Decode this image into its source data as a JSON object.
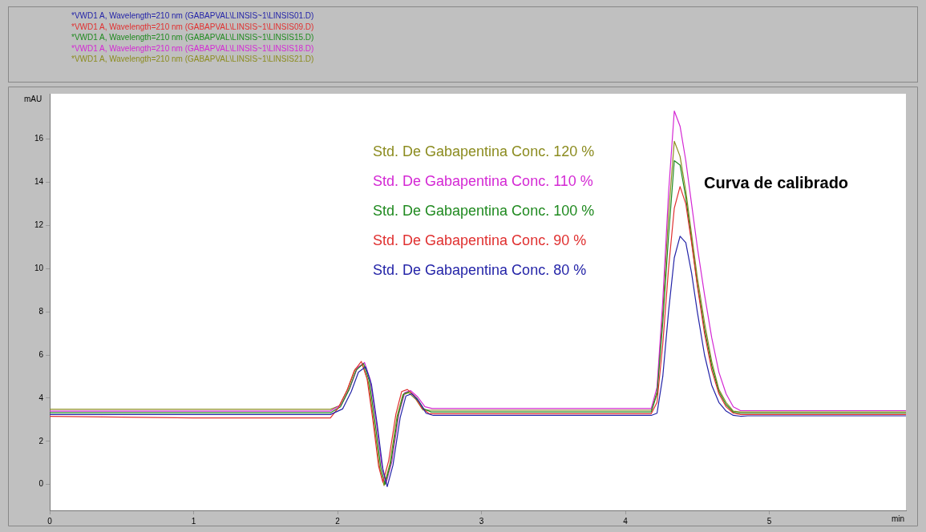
{
  "chart_data": {
    "type": "line",
    "xlabel": "min",
    "ylabel": "mAU",
    "series": [
      {
        "name": "*VWD1 A, Wavelength=210 nm (GABAPVAL\\LINSIS~1\\LINSIS01.D)",
        "color": "#2424a8",
        "x": [
          0,
          1.0,
          1.95,
          2.035,
          2.095,
          2.145,
          2.195,
          2.235,
          2.275,
          2.315,
          2.345,
          2.385,
          2.435,
          2.475,
          2.515,
          2.565,
          2.615,
          2.665,
          3.0,
          4.0,
          4.18,
          4.22,
          4.26,
          4.3,
          4.34,
          4.38,
          4.42,
          4.46,
          4.5,
          4.55,
          4.6,
          4.65,
          4.7,
          4.75,
          4.8,
          4.85,
          5.0,
          5.95
        ],
        "values": [
          3.24,
          3.24,
          3.24,
          3.5,
          4.3,
          5.2,
          5.45,
          4.65,
          2.8,
          0.7,
          -0.1,
          0.9,
          3.1,
          4.1,
          4.2,
          3.85,
          3.3,
          3.2,
          3.2,
          3.2,
          3.2,
          3.3,
          5.0,
          8.0,
          10.5,
          11.5,
          11.2,
          9.8,
          8.0,
          6.0,
          4.6,
          3.8,
          3.4,
          3.2,
          3.16,
          3.18,
          3.18,
          3.18
        ]
      },
      {
        "name": "*VWD1 A, Wavelength=210 nm (GABAPVAL\\LINSIS~1\\LINSIS09.D)",
        "color": "#e03030",
        "x": [
          0,
          1.0,
          1.95,
          2.005,
          2.065,
          2.115,
          2.165,
          2.205,
          2.245,
          2.285,
          2.315,
          2.355,
          2.405,
          2.445,
          2.485,
          2.535,
          2.585,
          2.635,
          3.0,
          4.0,
          4.18,
          4.22,
          4.26,
          4.3,
          4.34,
          4.38,
          4.42,
          4.46,
          4.5,
          4.55,
          4.6,
          4.65,
          4.7,
          4.75,
          4.8,
          4.85,
          5.0,
          5.95
        ],
        "values": [
          3.16,
          3.08,
          3.08,
          3.55,
          4.35,
          5.25,
          5.7,
          4.9,
          3.0,
          0.85,
          0.1,
          1.1,
          3.25,
          4.3,
          4.4,
          4.1,
          3.55,
          3.28,
          3.28,
          3.28,
          3.28,
          3.8,
          6.5,
          10.0,
          12.8,
          13.8,
          13.0,
          11.2,
          9.2,
          7.0,
          5.3,
          4.2,
          3.6,
          3.3,
          3.24,
          3.24,
          3.24,
          3.24
        ]
      },
      {
        "name": "*VWD1 A, Wavelength=210 nm (GABAPVAL\\LINSIS~1\\LINSIS15.D)",
        "color": "#208a20",
        "x": [
          0,
          1.0,
          1.95,
          2.02,
          2.08,
          2.13,
          2.18,
          2.22,
          2.26,
          2.3,
          2.33,
          2.37,
          2.42,
          2.46,
          2.5,
          2.55,
          2.6,
          2.65,
          3.0,
          4.0,
          4.18,
          4.22,
          4.26,
          4.3,
          4.34,
          4.38,
          4.42,
          4.46,
          4.5,
          4.55,
          4.6,
          4.65,
          4.7,
          4.75,
          4.8,
          4.85,
          5.0,
          5.95
        ],
        "values": [
          3.32,
          3.32,
          3.32,
          3.6,
          4.4,
          5.3,
          5.6,
          4.8,
          2.9,
          0.8,
          0.0,
          1.0,
          3.2,
          4.2,
          4.3,
          4.0,
          3.5,
          3.36,
          3.36,
          3.36,
          3.36,
          4.2,
          7.5,
          11.5,
          15.0,
          14.8,
          13.3,
          11.3,
          9.3,
          7.2,
          5.5,
          4.3,
          3.7,
          3.35,
          3.3,
          3.3,
          3.3,
          3.3
        ]
      },
      {
        "name": "*VWD1 A, Wavelength=210 nm (GABAPVAL\\LINSIS~1\\LINSIS18.D)",
        "color": "#d428d4",
        "x": [
          0,
          1.0,
          1.95,
          2.027,
          2.087,
          2.137,
          2.187,
          2.227,
          2.267,
          2.307,
          2.337,
          2.377,
          2.427,
          2.467,
          2.507,
          2.557,
          2.607,
          2.657,
          3.0,
          4.0,
          4.18,
          4.22,
          4.26,
          4.3,
          4.34,
          4.38,
          4.42,
          4.46,
          4.5,
          4.55,
          4.6,
          4.65,
          4.7,
          4.75,
          4.8,
          4.85,
          5.0,
          5.95
        ],
        "values": [
          3.4,
          3.4,
          3.4,
          3.7,
          4.5,
          5.4,
          5.65,
          4.85,
          3.0,
          0.9,
          0.05,
          1.05,
          3.3,
          4.25,
          4.35,
          4.05,
          3.6,
          3.52,
          3.52,
          3.52,
          3.52,
          4.5,
          8.5,
          13.5,
          17.3,
          16.6,
          15.0,
          13.0,
          11.0,
          8.8,
          6.8,
          5.2,
          4.2,
          3.6,
          3.42,
          3.42,
          3.42,
          3.42
        ]
      },
      {
        "name": "*VWD1 A, Wavelength=210 nm (GABAPVAL\\LINSIS~1\\LINSIS21.D)",
        "color": "#8c8c20",
        "x": [
          0,
          1.0,
          1.95,
          2.013,
          2.073,
          2.123,
          2.173,
          2.213,
          2.253,
          2.293,
          2.323,
          2.363,
          2.413,
          2.453,
          2.493,
          2.543,
          2.593,
          2.643,
          3.0,
          4.0,
          4.18,
          4.22,
          4.26,
          4.3,
          4.34,
          4.38,
          4.42,
          4.46,
          4.5,
          4.55,
          4.6,
          4.65,
          4.7,
          4.75,
          4.8,
          4.85,
          5.0,
          5.95
        ],
        "values": [
          3.48,
          3.48,
          3.48,
          3.65,
          4.45,
          5.35,
          5.55,
          4.75,
          2.85,
          0.75,
          -0.05,
          0.95,
          3.15,
          4.15,
          4.25,
          3.95,
          3.45,
          3.44,
          3.44,
          3.44,
          3.44,
          4.3,
          8.0,
          12.5,
          15.9,
          15.2,
          13.6,
          11.6,
          9.6,
          7.5,
          5.7,
          4.4,
          3.8,
          3.4,
          3.36,
          3.36,
          3.36,
          3.36
        ]
      }
    ],
    "annotations": [
      "Std. De Gabapentina Conc. 120 %",
      "Std. De Gabapentina Conc. 110 %",
      "Std. De Gabapentina Conc. 100 %",
      "Std. De Gabapentina Conc. 90 %",
      "Std. De Gabapentina Conc. 80 %",
      "Curva de calibrado"
    ],
    "xlim": [
      0,
      5.95
    ],
    "xticks": [
      0,
      1,
      2,
      3,
      4,
      5
    ],
    "ylim": [
      -1.2,
      18.1
    ],
    "yticks": [
      0,
      2,
      4,
      6,
      8,
      10,
      12,
      14,
      16
    ],
    "grid": false,
    "legend": "top left",
    "marker": "none",
    "line_style": "solid"
  }
}
